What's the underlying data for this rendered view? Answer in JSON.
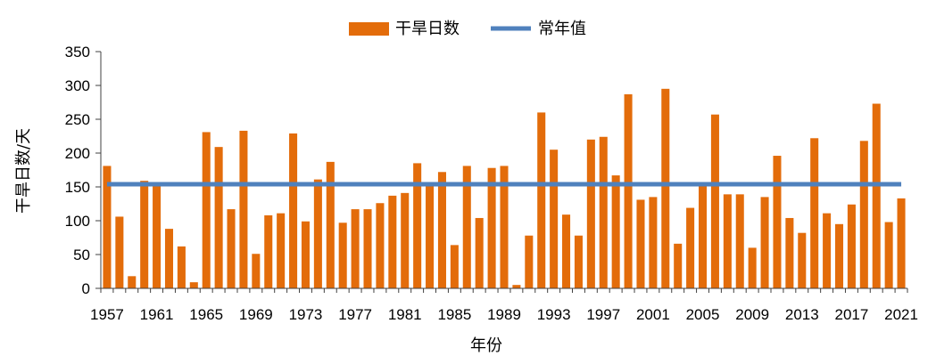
{
  "chart_data": {
    "type": "bar",
    "x": [
      1957,
      1958,
      1959,
      1960,
      1961,
      1962,
      1963,
      1964,
      1965,
      1966,
      1967,
      1968,
      1969,
      1970,
      1971,
      1972,
      1973,
      1974,
      1975,
      1976,
      1977,
      1978,
      1979,
      1980,
      1981,
      1982,
      1983,
      1984,
      1985,
      1986,
      1987,
      1988,
      1989,
      1990,
      1991,
      1992,
      1993,
      1994,
      1995,
      1996,
      1997,
      1998,
      1999,
      2000,
      2001,
      2002,
      2003,
      2004,
      2005,
      2006,
      2007,
      2008,
      2009,
      2010,
      2011,
      2012,
      2013,
      2014,
      2015,
      2016,
      2017,
      2018,
      2019,
      2020,
      2021
    ],
    "x_tick_labels": [
      "1957",
      "1961",
      "1965",
      "1969",
      "1973",
      "1977",
      "1981",
      "1985",
      "1989",
      "1993",
      "1997",
      "2001",
      "2005",
      "2009",
      "2013",
      "2017",
      "2021"
    ],
    "series": [
      {
        "name": "干旱日数",
        "type": "bar",
        "color": "#E36C0A",
        "values": [
          181,
          106,
          18,
          159,
          153,
          88,
          62,
          9,
          231,
          209,
          117,
          233,
          51,
          108,
          111,
          229,
          99,
          161,
          187,
          97,
          117,
          117,
          126,
          137,
          141,
          185,
          151,
          172,
          64,
          181,
          104,
          178,
          181,
          5,
          78,
          260,
          205,
          109,
          78,
          220,
          224,
          167,
          287,
          131,
          135,
          295,
          66,
          119,
          153,
          257,
          139,
          139,
          60,
          135,
          196,
          104,
          82,
          222,
          111,
          95,
          124,
          218,
          273,
          98,
          133
        ]
      },
      {
        "name": "常年值",
        "type": "line",
        "color": "#4F81BD",
        "value": 154
      }
    ],
    "xlabel": "年份",
    "ylabel": "干旱日数/天",
    "ylim": [
      0,
      350
    ],
    "yticks": [
      0,
      50,
      100,
      150,
      200,
      250,
      300,
      350
    ],
    "grid": false,
    "legend_position": "top-center"
  }
}
